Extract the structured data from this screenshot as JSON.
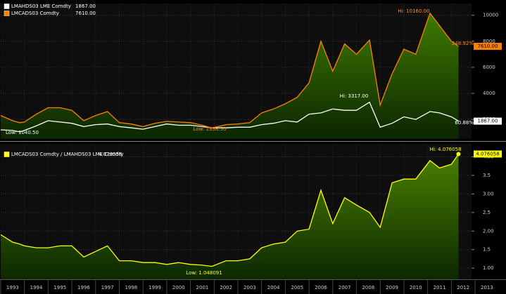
{
  "chart_data": [
    {
      "type": "line",
      "x": [
        1993.0,
        1993.5,
        1993.8,
        1994.0,
        1994.5,
        1995.0,
        1995.5,
        1996.0,
        1996.5,
        1997.0,
        1997.5,
        1998.0,
        1998.5,
        1999.0,
        1999.5,
        2000.0,
        2000.5,
        2001.0,
        2001.5,
        2001.9,
        2002.5,
        2003.0,
        2003.5,
        2004.0,
        2004.5,
        2005.0,
        2005.5,
        2006.0,
        2006.5,
        2007.0,
        2007.5,
        2008.0,
        2008.55,
        2009.0,
        2009.5,
        2010.0,
        2010.5,
        2011.1,
        2011.5,
        2012.0,
        2012.3
      ],
      "series": [
        {
          "name": "LMAHDS03 LME Comdty",
          "last_label": "1867.00",
          "color": "#ffffff",
          "values": [
            1200,
            1150,
            1040.5,
            1150,
            1500,
            1900,
            1800,
            1700,
            1450,
            1600,
            1650,
            1450,
            1350,
            1250,
            1450,
            1650,
            1550,
            1550,
            1450,
            1350,
            1350,
            1400,
            1400,
            1600,
            1700,
            1900,
            1800,
            2400,
            2500,
            2800,
            2700,
            2700,
            3317,
            1400,
            1700,
            2200,
            2000,
            2600,
            2500,
            2200,
            1867
          ]
        },
        {
          "name": "LMCADS03 Comdty",
          "last_label": "7610.00",
          "color": "#ff7f00",
          "values": [
            2300,
            1900,
            1750,
            1800,
            2400,
            2900,
            2900,
            2700,
            1900,
            2300,
            2600,
            1750,
            1650,
            1450,
            1700,
            1850,
            1800,
            1750,
            1550,
            1338.5,
            1600,
            1650,
            1750,
            2500,
            2800,
            3200,
            3700,
            4800,
            8000,
            5700,
            7800,
            7000,
            8100,
            3100,
            5500,
            7400,
            7000,
            10160,
            9200,
            8000,
            7610
          ]
        }
      ],
      "xlim": [
        1993,
        2012.85
      ],
      "xticks": [
        1993,
        1994,
        1995,
        1996,
        1997,
        1998,
        1999,
        2000,
        2001,
        2002,
        2003,
        2004,
        2005,
        2006,
        2007,
        2008,
        2009,
        2010,
        2011,
        2012,
        2013
      ],
      "ylim": [
        500,
        10900
      ],
      "yticks": [
        2000,
        4000,
        6000,
        8000,
        10000
      ],
      "grid": true,
      "annotations": [
        {
          "text": "Hi: 10160.00",
          "color": "#ff8c1a"
        },
        {
          "text": "Hi: 3317.00",
          "color": "#ffffff"
        },
        {
          "text": "Low: 1040.50",
          "color": "#ffffff"
        },
        {
          "text": "Low: 1338.50",
          "color": "#ff8c1a"
        },
        {
          "text": "248.92%",
          "color": "#ff8c1a"
        },
        {
          "text": "60.88%",
          "color": "#ffffff"
        }
      ]
    },
    {
      "type": "line",
      "x": [
        1993.0,
        1993.5,
        1993.8,
        1994.0,
        1994.5,
        1995.0,
        1995.5,
        1996.0,
        1996.5,
        1997.0,
        1997.5,
        1998.0,
        1998.5,
        1999.0,
        1999.5,
        2000.0,
        2000.5,
        2001.0,
        2001.5,
        2001.9,
        2002.5,
        2003.0,
        2003.5,
        2004.0,
        2004.5,
        2005.0,
        2005.5,
        2006.0,
        2006.5,
        2007.0,
        2007.5,
        2008.0,
        2008.55,
        2009.0,
        2009.5,
        2010.0,
        2010.5,
        2011.1,
        2011.5,
        2012.0,
        2012.3
      ],
      "series": [
        {
          "name": "LMCADS03 Comdty / LMAHDS03 LME Comdty",
          "last_label": "4.076058",
          "color": "#ffff00",
          "values": [
            1.9,
            1.7,
            1.65,
            1.6,
            1.55,
            1.55,
            1.6,
            1.6,
            1.3,
            1.45,
            1.6,
            1.2,
            1.2,
            1.15,
            1.15,
            1.1,
            1.15,
            1.1,
            1.08,
            1.048091,
            1.2,
            1.2,
            1.25,
            1.55,
            1.65,
            1.7,
            2.0,
            2.05,
            3.1,
            2.2,
            2.9,
            2.7,
            2.5,
            2.1,
            3.3,
            3.4,
            3.4,
            3.9,
            3.7,
            3.8,
            4.076058
          ]
        }
      ],
      "xlim": [
        1993,
        2012.85
      ],
      "ylim": [
        0.7,
        4.35
      ],
      "yticks": [
        1,
        1.5,
        2,
        2.5,
        3,
        3.5,
        4
      ],
      "ytick_labels": [
        "1.00",
        "1.5",
        "2.00",
        "2.5",
        "3.00",
        "3.5",
        "4.00"
      ],
      "grid": true,
      "annotations": [
        {
          "text": "Hi: 4.076058",
          "color": "#ffff00"
        },
        {
          "text": "Low: 1.048091",
          "color": "#ffff00"
        }
      ]
    }
  ]
}
